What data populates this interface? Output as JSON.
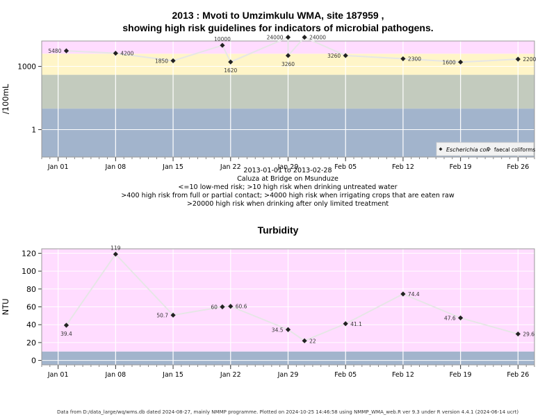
{
  "header": {
    "title_line1": "2013 : Mvoti to Umzimkulu WMA, site 187959 ,",
    "title_line2": "showing high risk guidelines for indicators of microbial pathogens."
  },
  "micro_notes": {
    "date_range": "2013-01-01 to 2013-02-28",
    "site_name": "Caluza at Bridge on Msunduze",
    "guideline1": "<=10 low-med risk; >10 high risk when drinking untreated water",
    "guideline2": ">400 high risk from full or partial contact; >4000 high risk when irrigating crops that are eaten raw",
    "guideline3": ">20000 high risk when drinking after only limited treatment"
  },
  "turbidity_title": "Turbidity",
  "footer": "Data from D:/data_large/wq/wms.db dated 2024-08-27, mainly NMMP programme. Plotted on 2024-10-25 14:46:58 using NMMP_WMA_web.R ver 9.3 under R version 4.4.1 (2024-06-14 ucrt)",
  "colors": {
    "band_red": "#ffb6c1",
    "band_pink": "#ffdcff",
    "band_yellow": "#fff5c8",
    "band_gray": "#c3cbbe",
    "band_blue": "#a2b4cc",
    "line": "#e6e6e6",
    "point": "#222222"
  },
  "chart_data": [
    {
      "type": "scatter",
      "ylabel": "/100mL",
      "y_scale": "log10",
      "ylim": [
        0.05,
        16000
      ],
      "yticks": [
        1,
        1000
      ],
      "ytick_labels": [
        "1",
        "1000"
      ],
      "xlim": [
        "2012-12-30",
        "2013-02-28"
      ],
      "xticks": [
        "2013-01-01",
        "2013-01-08",
        "2013-01-15",
        "2013-01-22",
        "2013-01-29",
        "2013-02-05",
        "2013-02-12",
        "2013-02-19",
        "2013-02-26"
      ],
      "xtick_labels": [
        "Jan 01",
        "Jan 08",
        "Jan 15",
        "Jan 22",
        "Jan 29",
        "Feb 05",
        "Feb 12",
        "Feb 19",
        "Feb 26"
      ],
      "bands": [
        {
          "from": 0.05,
          "to": 10,
          "color": "#a2b4cc"
        },
        {
          "from": 10,
          "to": 400,
          "color": "#c3cbbe"
        },
        {
          "from": 400,
          "to": 4000,
          "color": "#fff5c8"
        },
        {
          "from": 4000,
          "to": 20000,
          "color": "#ffdcff"
        },
        {
          "from": 20000,
          "to": 60000,
          "color": "#ffb6c1"
        }
      ],
      "legend": {
        "position": "bottom-right",
        "entries": [
          "Escherichia coli",
          "faecal coliforms"
        ]
      },
      "series": [
        {
          "name": "Escherichia coli",
          "points": [
            {
              "x": "2013-01-02",
              "y": 5480,
              "label": "5480",
              "pos": "left"
            },
            {
              "x": "2013-01-08",
              "y": 4200,
              "label": "4200",
              "pos": "right"
            },
            {
              "x": "2013-01-15",
              "y": 1850,
              "label": "1850",
              "pos": "left"
            },
            {
              "x": "2013-01-21",
              "y": 10000,
              "label": "10000",
              "pos": "above"
            },
            {
              "x": "2013-01-22",
              "y": 1620,
              "label": "1620",
              "pos": "below"
            },
            {
              "x": "2013-01-29",
              "y": 24000,
              "label": "24000",
              "pos": "left"
            },
            {
              "x": "2013-01-29",
              "y": 3260,
              "label": "3260",
              "pos": "below"
            },
            {
              "x": "2013-01-31",
              "y": 24000,
              "label": "24000",
              "pos": "right"
            },
            {
              "x": "2013-02-05",
              "y": 3260,
              "label": "3260",
              "pos": "left"
            },
            {
              "x": "2013-02-12",
              "y": 2300,
              "label": "2300",
              "pos": "right"
            },
            {
              "x": "2013-02-19",
              "y": 1600,
              "label": "1600",
              "pos": "left"
            },
            {
              "x": "2013-02-26",
              "y": 2200,
              "label": "2200",
              "pos": "right"
            }
          ]
        }
      ]
    },
    {
      "type": "line",
      "title": "Turbidity",
      "ylabel": "NTU",
      "ylim": [
        -5,
        125
      ],
      "yticks": [
        0,
        20,
        40,
        60,
        80,
        100,
        120
      ],
      "ytick_labels": [
        "0",
        "20",
        "40",
        "60",
        "80",
        "100",
        "120"
      ],
      "xlim": [
        "2012-12-30",
        "2013-02-28"
      ],
      "xticks": [
        "2013-01-01",
        "2013-01-08",
        "2013-01-15",
        "2013-01-22",
        "2013-01-29",
        "2013-02-05",
        "2013-02-12",
        "2013-02-19",
        "2013-02-26"
      ],
      "xtick_labels": [
        "Jan 01",
        "Jan 08",
        "Jan 15",
        "Jan 22",
        "Jan 29",
        "Feb 05",
        "Feb 12",
        "Feb 19",
        "Feb 26"
      ],
      "bands": [
        {
          "from": -5,
          "to": 10,
          "color": "#a2b4cc"
        },
        {
          "from": 10,
          "to": 125,
          "color": "#ffdcff"
        }
      ],
      "series": [
        {
          "points": [
            {
              "x": "2013-01-02",
              "y": 39.4,
              "label": "39.4",
              "pos": "below"
            },
            {
              "x": "2013-01-08",
              "y": 119,
              "label": "119",
              "pos": "above"
            },
            {
              "x": "2013-01-15",
              "y": 50.7,
              "label": "50.7",
              "pos": "left"
            },
            {
              "x": "2013-01-21",
              "y": 60,
              "label": "60",
              "pos": "left"
            },
            {
              "x": "2013-01-22",
              "y": 60.6,
              "label": "60.6",
              "pos": "right"
            },
            {
              "x": "2013-01-29",
              "y": 34.5,
              "label": "34.5",
              "pos": "left"
            },
            {
              "x": "2013-01-31",
              "y": 22,
              "label": "22",
              "pos": "right"
            },
            {
              "x": "2013-02-05",
              "y": 41.1,
              "label": "41.1",
              "pos": "right"
            },
            {
              "x": "2013-02-12",
              "y": 74.4,
              "label": "74.4",
              "pos": "right"
            },
            {
              "x": "2013-02-19",
              "y": 47.6,
              "label": "47.6",
              "pos": "left"
            },
            {
              "x": "2013-02-26",
              "y": 29.6,
              "label": "29.6",
              "pos": "right"
            }
          ]
        }
      ]
    }
  ]
}
